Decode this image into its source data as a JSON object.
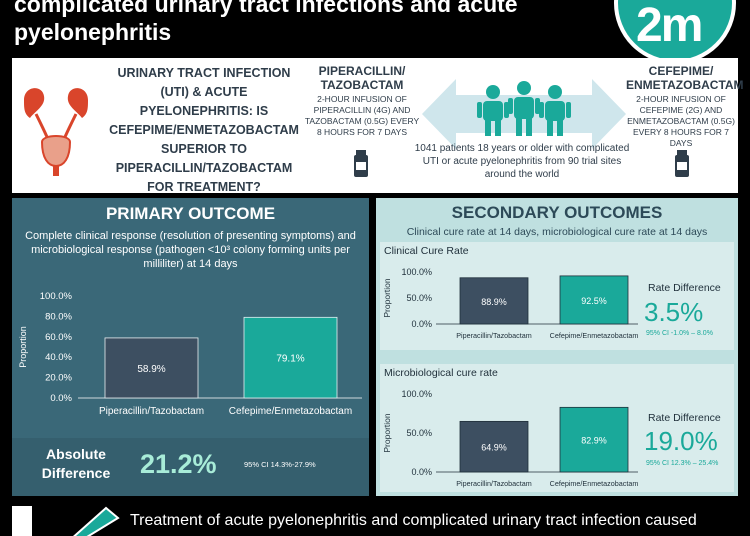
{
  "title": {
    "line1": "complicated urinary tract infections and acute",
    "line2": "pyelonephritis"
  },
  "logo": {
    "text": "2m"
  },
  "question": "URINARY TRACT INFECTION (UTI) & ACUTE PYELONEPHRITIS: IS CEFEPIME/ENMETAZOBACTAM SUPERIOR TO PIPERACILLIN/TAZOBACTAM FOR TREATMENT?",
  "drug_a": {
    "name": "PIPERACILLIN/ TAZOBACTAM",
    "desc": "2-HOUR INFUSION OF PIPERACILLIN (4G) AND TAZOBACTAM (0.5G) EVERY 8 HOURS FOR 7 DAYS"
  },
  "drug_b": {
    "name": "CEFEPIME/ ENMETAZOBACTAM",
    "desc": "2-HOUR INFUSION OF CEFEPIME (2G) AND ENMETAZOBACTAM (0.5G) EVERY 8 HOURS FOR 7 DAYS"
  },
  "patients_text": "1041 patients 18 years or older with complicated UTI or acute pyelonephritis from 90 trial sites around the world",
  "primary": {
    "heading": "PRIMARY OUTCOME",
    "description": "Complete clinical response (resolution of presenting symptoms) and microbiological response (pathogen <10³ colony forming units per milliliter) at 14 days",
    "absolute_label": "Absolute Difference",
    "absolute_value": "21.2%",
    "absolute_ci": "95% CI 14.3%-27.9%"
  },
  "secondary": {
    "heading": "SECONDARY OUTCOMES",
    "subtitle": "Clinical cure rate at 14 days, microbiological cure rate at 14 days",
    "clinical": {
      "title": "Clinical Cure Rate",
      "rd_label": "Rate Difference",
      "rd_value": "3.5%",
      "rd_ci": "95% CI -1.0% – 8.0%"
    },
    "micro": {
      "title": "Microbiological cure rate",
      "rd_label": "Rate Difference",
      "rd_value": "19.0%",
      "rd_ci": "95% CI 12.3% – 25.4%"
    }
  },
  "footer": {
    "text": "Treatment of acute pyelonephritis and complicated urinary tract infection caused"
  },
  "colors": {
    "teal": "#1aa99a",
    "slate": "#3d4f61",
    "primary_bg": "#3a6878",
    "secondary_bg": "#bfe0e0"
  },
  "chart_data": [
    {
      "type": "bar",
      "categories": [
        "Piperacillin/Tazobactam",
        "Cefepime/Enmetazobactam"
      ],
      "values": [
        58.9,
        79.1
      ],
      "value_labels": [
        "58.9%",
        "79.1%"
      ],
      "ylabel": "Proportion",
      "yticks": [
        "100.0%",
        "80.0%",
        "60.0%",
        "40.0%",
        "20.0%",
        "0.0%"
      ],
      "ylim": [
        0,
        100
      ]
    },
    {
      "type": "bar",
      "categories": [
        "Piperacillin/Tazobactam",
        "Cefepime/Enmetazobactam"
      ],
      "values": [
        88.9,
        92.5
      ],
      "value_labels": [
        "88.9%",
        "92.5%"
      ],
      "ylabel": "Proportion",
      "yticks": [
        "100.0%",
        "50.0%",
        "0.0%"
      ],
      "ylim": [
        0,
        100
      ]
    },
    {
      "type": "bar",
      "categories": [
        "Piperacillin/Tazobactam",
        "Cefepime/Enmetazobactam"
      ],
      "values": [
        64.9,
        82.9
      ],
      "value_labels": [
        "64.9%",
        "82.9%"
      ],
      "ylabel": "Proportion",
      "yticks": [
        "100.0%",
        "50.0%",
        "0.0%"
      ],
      "ylim": [
        0,
        100
      ]
    }
  ]
}
